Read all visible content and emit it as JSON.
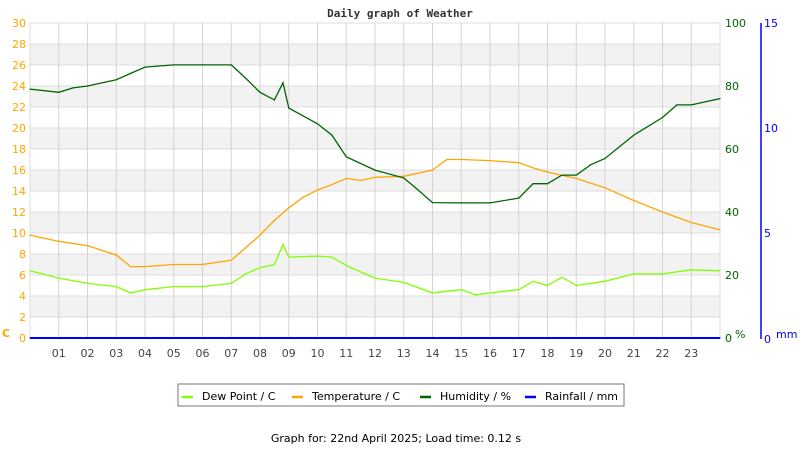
{
  "chart_data": {
    "type": "line",
    "title": "Daily graph of Weather",
    "footer": "Graph for: 22nd April 2025; Load time: 0.12 s",
    "x_ticks": [
      "01",
      "02",
      "03",
      "04",
      "05",
      "06",
      "07",
      "08",
      "09",
      "10",
      "11",
      "12",
      "13",
      "14",
      "15",
      "16",
      "17",
      "18",
      "19",
      "20",
      "21",
      "22",
      "23"
    ],
    "xlim_hours": [
      0,
      24
    ],
    "axes": {
      "left": {
        "label": "C",
        "range": [
          0,
          30
        ],
        "ticks": [
          0,
          2,
          4,
          6,
          8,
          10,
          12,
          14,
          16,
          18,
          20,
          22,
          24,
          26,
          28,
          30
        ],
        "color": "#ffa500"
      },
      "right": {
        "label": "%",
        "range": [
          0,
          100
        ],
        "ticks": [
          0,
          20,
          40,
          60,
          80,
          100
        ],
        "color": "#006400"
      },
      "right2": {
        "label": "mm",
        "range": [
          0,
          15
        ],
        "ticks": [
          0,
          5,
          10,
          15
        ],
        "color": "#0000ff"
      }
    },
    "grid": true,
    "legend_position": "bottom",
    "series": [
      {
        "name": "Dew Point / C",
        "axis": "left",
        "color": "#80ff00",
        "x": [
          0,
          1,
          2,
          3,
          3.5,
          4,
          5,
          6,
          7,
          7.5,
          8,
          8.5,
          8.8,
          9,
          10,
          10.5,
          11,
          12,
          13,
          14,
          15,
          15.5,
          16,
          17,
          17.5,
          18,
          18.5,
          19,
          20,
          21,
          22,
          23,
          24
        ],
        "y": [
          6.4,
          5.7,
          5.2,
          4.9,
          4.3,
          4.6,
          4.9,
          4.9,
          5.2,
          6.1,
          6.7,
          7.0,
          8.9,
          7.7,
          7.8,
          7.7,
          6.9,
          5.7,
          5.3,
          4.3,
          4.6,
          4.1,
          4.3,
          4.6,
          5.4,
          5.0,
          5.8,
          5.0,
          5.4,
          6.1,
          6.1,
          6.5,
          6.4
        ]
      },
      {
        "name": "Temperature / C",
        "axis": "left",
        "color": "#ffa500",
        "x": [
          0,
          1,
          2,
          3,
          3.5,
          4,
          5,
          6,
          7,
          7.5,
          8,
          8.5,
          9,
          9.5,
          10,
          10.5,
          11,
          11.5,
          12,
          13,
          14,
          14.5,
          15,
          16,
          17,
          17.5,
          18,
          19,
          20,
          21,
          22,
          23,
          24
        ],
        "y": [
          9.8,
          9.2,
          8.8,
          7.9,
          6.8,
          6.8,
          7.0,
          7.0,
          7.4,
          8.6,
          9.8,
          11.2,
          12.4,
          13.4,
          14.1,
          14.6,
          15.2,
          15.0,
          15.3,
          15.4,
          16.0,
          17.0,
          17.0,
          16.9,
          16.7,
          16.2,
          15.8,
          15.2,
          14.3,
          13.1,
          12.0,
          11.0,
          10.3
        ]
      },
      {
        "name": "Humidity / %",
        "axis": "right",
        "color": "#006400",
        "x": [
          0,
          1,
          1.5,
          2,
          3,
          3.5,
          4,
          5,
          6,
          7,
          7.5,
          8,
          8.5,
          8.8,
          9,
          10,
          10.5,
          11,
          12,
          13,
          13.5,
          14,
          15,
          16,
          17,
          17.5,
          18,
          18.5,
          19,
          19.5,
          20,
          21,
          22,
          22.5,
          23,
          23.8,
          24
        ],
        "y": [
          79,
          78,
          79.4,
          80,
          82,
          84,
          86,
          86.7,
          86.7,
          86.7,
          82.5,
          78,
          75.6,
          81,
          73,
          68,
          64.4,
          57.5,
          53.3,
          50.8,
          47,
          43,
          42.9,
          42.9,
          44.4,
          49,
          49,
          51.7,
          51.7,
          55,
          57,
          64.4,
          70,
          74,
          74,
          75.6,
          76
        ]
      },
      {
        "name": "Rainfall / mm",
        "axis": "right2",
        "color": "#0000ff",
        "x": [
          0,
          24
        ],
        "y": [
          0,
          0
        ]
      }
    ]
  }
}
